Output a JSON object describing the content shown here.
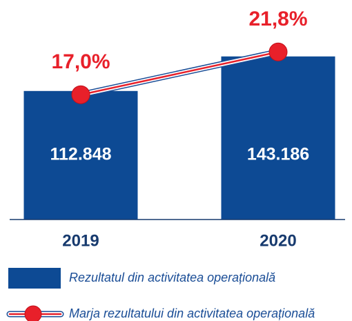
{
  "chart_data": {
    "type": "bar",
    "categories": [
      "2019",
      "2020"
    ],
    "series": [
      {
        "name": "Rezultatul din activitatea operațională",
        "type": "bar",
        "color": "#0d4a94",
        "values": [
          112848,
          143186
        ],
        "value_labels": [
          "112.848",
          "143.186"
        ]
      },
      {
        "name": "Marja rezultatului din activitatea operațională",
        "type": "line",
        "axis": "y2",
        "color": "#e8202a",
        "values": [
          17.0,
          21.8
        ],
        "value_labels": [
          "17,0%",
          "21,8%"
        ]
      }
    ],
    "ylim": [
      0,
      180000
    ],
    "y2lim": [
      3,
      26
    ]
  }
}
